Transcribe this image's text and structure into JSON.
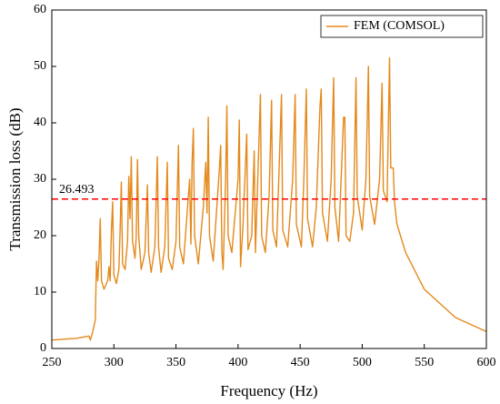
{
  "chart_data": {
    "type": "line",
    "x_label": "Frequency (Hz)",
    "y_label": "Transmission loss (dB)",
    "x": [
      250,
      270,
      280,
      281,
      283,
      285,
      286,
      287,
      288,
      289,
      290,
      292,
      295,
      296,
      297,
      298,
      299,
      300,
      302,
      304,
      305,
      306,
      307,
      309,
      311,
      312,
      313,
      314,
      315,
      317,
      318,
      319,
      320,
      322,
      325,
      327,
      328,
      330,
      333,
      335,
      336,
      338,
      341,
      343,
      344,
      347,
      350,
      352,
      353,
      356,
      361,
      362,
      363,
      364,
      365,
      368,
      372,
      374,
      375,
      376,
      377,
      380,
      385,
      386,
      387,
      388,
      390,
      391,
      392,
      395,
      400,
      401,
      402,
      404,
      407,
      408,
      411,
      413,
      414,
      418,
      419,
      422,
      425,
      427,
      428,
      431,
      435,
      436,
      440,
      444,
      446,
      447,
      451,
      453,
      455,
      456,
      460,
      463,
      466,
      467,
      468,
      472,
      475,
      477,
      478,
      481,
      485,
      486,
      487,
      490,
      493,
      495,
      496,
      500,
      503,
      505,
      506,
      510,
      514,
      516,
      517,
      520,
      522,
      523,
      525,
      526,
      528,
      535,
      550,
      575,
      600
    ],
    "series": [
      {
        "name": "FEM (COMSOL)",
        "color": "#e3891c",
        "values": [
          1.5,
          1.8,
          2.2,
          1.5,
          3,
          5,
          15.5,
          12,
          16,
          23,
          12,
          10.5,
          12,
          14.5,
          12,
          21,
          26,
          13,
          11.5,
          14,
          21,
          29.5,
          15,
          14,
          19,
          30.5,
          23,
          34,
          19,
          16,
          20,
          33.5,
          20,
          14,
          17,
          29,
          17,
          13.5,
          18,
          34,
          18,
          13.5,
          18,
          33,
          16,
          14,
          19,
          36,
          18,
          15,
          30,
          18.5,
          33,
          39,
          20,
          15,
          25,
          33,
          24,
          41,
          20,
          15.5,
          32,
          36,
          17,
          14,
          30,
          43,
          20,
          17,
          30,
          40.5,
          14.5,
          22,
          38,
          17.5,
          20,
          35,
          17,
          45,
          20,
          17,
          27,
          44,
          21,
          18,
          45,
          21,
          18,
          30,
          45,
          22,
          18,
          30,
          46,
          23,
          18,
          25,
          43,
          46,
          24,
          19,
          30,
          48,
          25,
          19,
          41,
          41,
          20,
          19,
          24,
          48,
          27,
          21,
          30,
          50,
          27,
          22,
          30,
          47,
          28,
          26,
          51.5,
          32,
          32,
          26,
          22,
          17,
          10.5,
          5.5,
          3
        ]
      }
    ],
    "reference_line": {
      "value": 26.493,
      "label": "26.493",
      "color": "#ff0000"
    },
    "xlim": [
      250,
      600
    ],
    "xticks": [
      250,
      300,
      350,
      400,
      450,
      500,
      550,
      600
    ],
    "ylim": [
      0,
      60
    ],
    "yticks": [
      0,
      10,
      20,
      30,
      40,
      50,
      60
    ],
    "legend": "upper right"
  }
}
